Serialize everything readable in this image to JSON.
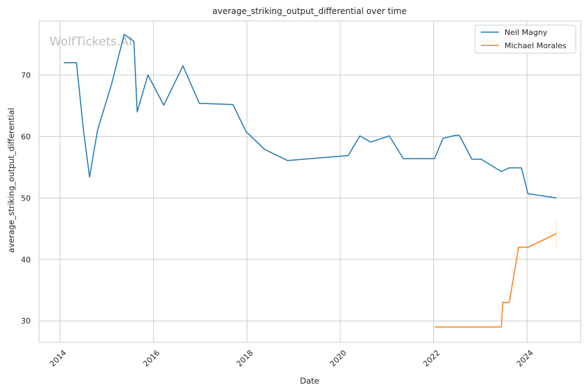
{
  "chart_data": {
    "type": "line",
    "title": "average_striking_output_differential over time",
    "xlabel": "Date",
    "ylabel": "average_striking_output_differential",
    "watermark": "WolfTickets.AI",
    "xlim": [
      2013.55,
      2025.15
    ],
    "ylim": [
      26.5,
      78.8
    ],
    "x_ticks": [
      2014,
      2016,
      2018,
      2020,
      2022,
      2024
    ],
    "x_tick_labels": [
      "2014",
      "2016",
      "2018",
      "2020",
      "2022",
      "2024"
    ],
    "y_ticks": [
      30,
      40,
      50,
      60,
      70
    ],
    "y_tick_labels": [
      "30",
      "40",
      "50",
      "60",
      "70"
    ],
    "grid": true,
    "legend_position": "top-right",
    "series": [
      {
        "name": "Neil Magny",
        "color": "#1f77b4",
        "points": [
          [
            2014.08,
            72.0
          ],
          [
            2014.35,
            72.0
          ],
          [
            2014.5,
            61.0
          ],
          [
            2014.63,
            53.4
          ],
          [
            2014.8,
            61.0
          ],
          [
            2015.1,
            68.5
          ],
          [
            2015.37,
            76.6
          ],
          [
            2015.58,
            75.5
          ],
          [
            2015.65,
            64.0
          ],
          [
            2015.88,
            70.0
          ],
          [
            2016.22,
            65.1
          ],
          [
            2016.63,
            71.5
          ],
          [
            2016.98,
            65.4
          ],
          [
            2017.7,
            65.2
          ],
          [
            2017.98,
            60.8
          ],
          [
            2018.38,
            57.9
          ],
          [
            2018.87,
            56.1
          ],
          [
            2020.17,
            56.9
          ],
          [
            2020.42,
            60.1
          ],
          [
            2020.65,
            59.1
          ],
          [
            2021.05,
            60.1
          ],
          [
            2021.35,
            56.4
          ],
          [
            2022.02,
            56.4
          ],
          [
            2022.2,
            59.7
          ],
          [
            2022.47,
            60.2
          ],
          [
            2022.55,
            60.2
          ],
          [
            2022.82,
            56.3
          ],
          [
            2023.02,
            56.3
          ],
          [
            2023.45,
            54.3
          ],
          [
            2023.62,
            54.9
          ],
          [
            2023.88,
            54.9
          ],
          [
            2024.02,
            50.7
          ],
          [
            2024.63,
            50.0
          ]
        ]
      },
      {
        "name": "Michael Morales",
        "color": "#ff7f0e",
        "points": [
          [
            2022.02,
            29.0
          ],
          [
            2023.45,
            29.0
          ],
          [
            2023.48,
            33.0
          ],
          [
            2023.62,
            33.0
          ],
          [
            2023.82,
            42.0
          ],
          [
            2024.02,
            42.0
          ],
          [
            2024.63,
            44.2
          ]
        ],
        "error_bar": {
          "x": 2024.63,
          "low": 42.0,
          "high": 46.4
        }
      }
    ]
  }
}
